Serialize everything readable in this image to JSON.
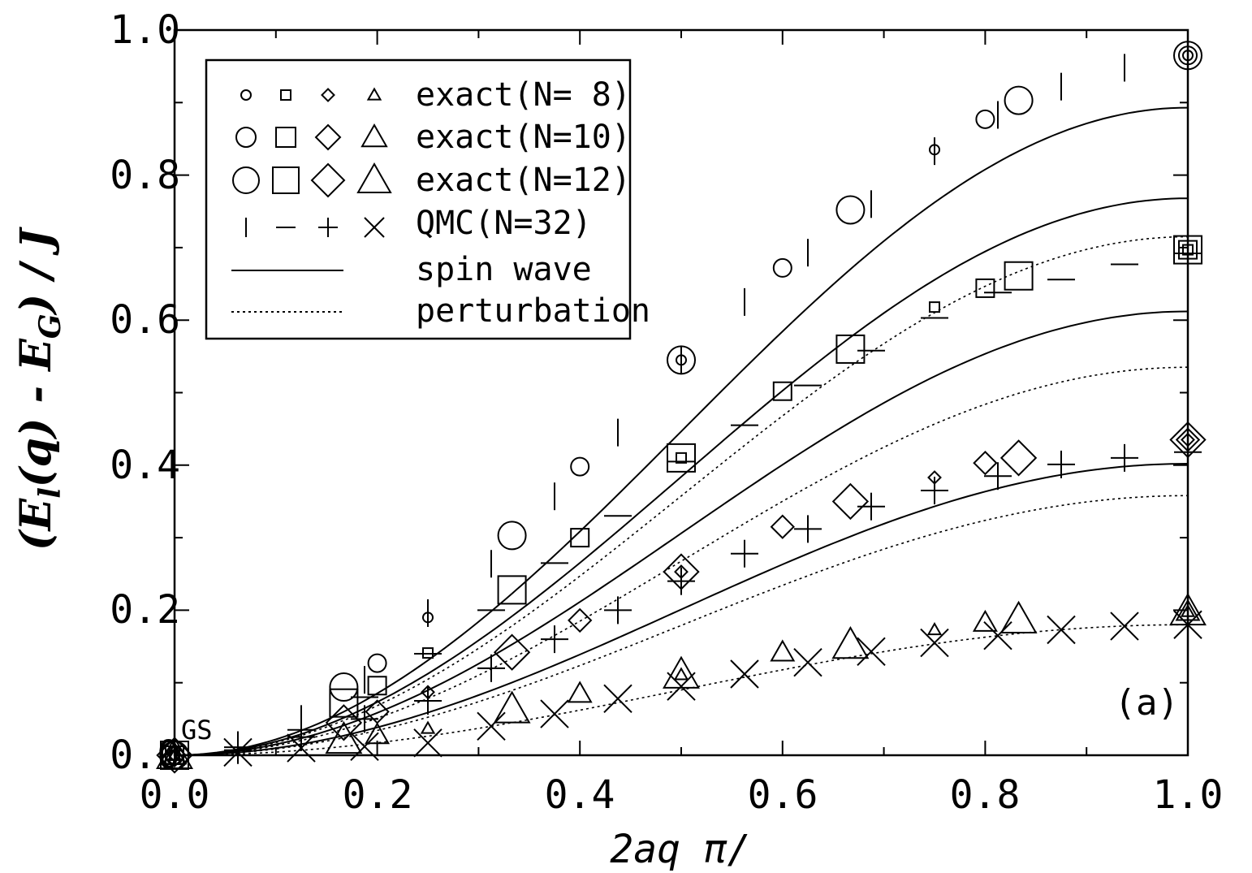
{
  "chart_data": {
    "type": "scatter",
    "xlabel": "2aq π/",
    "ylabel": "(E_l(q) - E_G) / J",
    "ylabel_parts": {
      "open": "(E",
      "sub_l": "l",
      "mid": "(q) - E",
      "sub_G": "G",
      "close": ") / J"
    },
    "xlim": [
      0,
      1
    ],
    "ylim": [
      0,
      1
    ],
    "xticks": [
      "0.0",
      "0.2",
      "0.4",
      "0.6",
      "0.8",
      "1.0"
    ],
    "yticks": [
      "0.0",
      "0.2",
      "0.4",
      "0.6",
      "0.8",
      "1.0"
    ],
    "panel_label": "(a)",
    "annotation": "GS",
    "legend": {
      "placement": "top-left",
      "entries": [
        {
          "label": "exact(N= 8)",
          "markers": [
            "circle",
            "square",
            "diamond",
            "triangle"
          ],
          "size": "small"
        },
        {
          "label": "exact(N=10)",
          "markers": [
            "circle",
            "square",
            "diamond",
            "triangle"
          ],
          "size": "medium"
        },
        {
          "label": "exact(N=12)",
          "markers": [
            "circle",
            "square",
            "diamond",
            "triangle"
          ],
          "size": "large"
        },
        {
          "label": "QMC(N=32)",
          "markers": [
            "vbar",
            "hbar",
            "plus",
            "cross"
          ],
          "size": "medium"
        },
        {
          "label": "spin wave",
          "line": "solid"
        },
        {
          "label": "perturbation",
          "line": "dotted"
        }
      ]
    },
    "series": [
      {
        "name": "exact(N= 8)",
        "branch": 1,
        "marker": "circle",
        "size": "small",
        "points": [
          [
            0,
            0
          ],
          [
            0.25,
            0.19
          ],
          [
            0.5,
            0.545
          ],
          [
            0.75,
            0.835
          ],
          [
            1,
            0.965
          ]
        ]
      },
      {
        "name": "exact(N= 8)",
        "branch": 2,
        "marker": "square",
        "size": "small",
        "points": [
          [
            0,
            0
          ],
          [
            0.25,
            0.141
          ],
          [
            0.5,
            0.41
          ],
          [
            0.75,
            0.618
          ],
          [
            1,
            0.697
          ]
        ]
      },
      {
        "name": "exact(N= 8)",
        "branch": 3,
        "marker": "diamond",
        "size": "small",
        "points": [
          [
            0,
            0
          ],
          [
            0.25,
            0.087
          ],
          [
            0.5,
            0.253
          ],
          [
            0.75,
            0.383
          ],
          [
            1,
            0.435
          ]
        ]
      },
      {
        "name": "exact(N= 8)",
        "branch": 4,
        "marker": "triangle",
        "size": "small",
        "points": [
          [
            0,
            0
          ],
          [
            0.25,
            0.037
          ],
          [
            0.5,
            0.111
          ],
          [
            0.75,
            0.173
          ],
          [
            1,
            0.198
          ]
        ]
      },
      {
        "name": "exact(N=10)",
        "branch": 1,
        "marker": "circle",
        "size": "medium",
        "points": [
          [
            0,
            0
          ],
          [
            0.2,
            0.127
          ],
          [
            0.4,
            0.398
          ],
          [
            0.6,
            0.672
          ],
          [
            0.8,
            0.877
          ],
          [
            1,
            0.965
          ]
        ]
      },
      {
        "name": "exact(N=10)",
        "branch": 2,
        "marker": "square",
        "size": "medium",
        "points": [
          [
            0,
            0
          ],
          [
            0.2,
            0.096
          ],
          [
            0.4,
            0.3
          ],
          [
            0.6,
            0.502
          ],
          [
            0.8,
            0.644
          ],
          [
            1,
            0.697
          ]
        ]
      },
      {
        "name": "exact(N=10)",
        "branch": 3,
        "marker": "diamond",
        "size": "medium",
        "points": [
          [
            0,
            0
          ],
          [
            0.2,
            0.06
          ],
          [
            0.4,
            0.186
          ],
          [
            0.6,
            0.315
          ],
          [
            0.8,
            0.403
          ],
          [
            1,
            0.435
          ]
        ]
      },
      {
        "name": "exact(N=10)",
        "branch": 4,
        "marker": "triangle",
        "size": "medium",
        "points": [
          [
            0,
            0
          ],
          [
            0.2,
            0.028
          ],
          [
            0.4,
            0.085
          ],
          [
            0.6,
            0.142
          ],
          [
            0.8,
            0.183
          ],
          [
            1,
            0.198
          ]
        ]
      },
      {
        "name": "exact(N=12)",
        "branch": 1,
        "marker": "circle",
        "size": "large",
        "points": [
          [
            0,
            0
          ],
          [
            0.167,
            0.094
          ],
          [
            0.333,
            0.303
          ],
          [
            0.5,
            0.545
          ],
          [
            0.667,
            0.752
          ],
          [
            0.833,
            0.903
          ],
          [
            1,
            0.965
          ]
        ]
      },
      {
        "name": "exact(N=12)",
        "branch": 2,
        "marker": "square",
        "size": "large",
        "points": [
          [
            0,
            0
          ],
          [
            0.167,
            0.072
          ],
          [
            0.333,
            0.228
          ],
          [
            0.5,
            0.41
          ],
          [
            0.667,
            0.56
          ],
          [
            0.833,
            0.661
          ],
          [
            1,
            0.697
          ]
        ]
      },
      {
        "name": "exact(N=12)",
        "branch": 3,
        "marker": "diamond",
        "size": "large",
        "points": [
          [
            0,
            0
          ],
          [
            0.167,
            0.045
          ],
          [
            0.333,
            0.142
          ],
          [
            0.5,
            0.253
          ],
          [
            0.667,
            0.35
          ],
          [
            0.833,
            0.41
          ],
          [
            1,
            0.435
          ]
        ]
      },
      {
        "name": "exact(N=12)",
        "branch": 4,
        "marker": "triangle",
        "size": "large",
        "points": [
          [
            0,
            0
          ],
          [
            0.167,
            0.021
          ],
          [
            0.333,
            0.063
          ],
          [
            0.5,
            0.111
          ],
          [
            0.667,
            0.152
          ],
          [
            0.833,
            0.187
          ],
          [
            1,
            0.198
          ]
        ]
      },
      {
        "name": "QMC(N=32)",
        "branch": 1,
        "marker": "vbar",
        "points": [
          [
            0.0625,
            0.014
          ],
          [
            0.125,
            0.05
          ],
          [
            0.1875,
            0.104
          ],
          [
            0.25,
            0.196
          ],
          [
            0.3125,
            0.264
          ],
          [
            0.375,
            0.357
          ],
          [
            0.4375,
            0.445
          ],
          [
            0.5,
            0.545
          ],
          [
            0.5625,
            0.625
          ],
          [
            0.625,
            0.693
          ],
          [
            0.6875,
            0.76
          ],
          [
            0.75,
            0.833
          ],
          [
            0.8125,
            0.883
          ],
          [
            0.875,
            0.922
          ],
          [
            0.9375,
            0.948
          ],
          [
            1,
            0.965
          ]
        ]
      },
      {
        "name": "QMC(N=32)",
        "branch": 2,
        "marker": "hbar",
        "points": [
          [
            0.0625,
            0.011
          ],
          [
            0.125,
            0.035
          ],
          [
            0.1875,
            0.08
          ],
          [
            0.25,
            0.14
          ],
          [
            0.3125,
            0.2
          ],
          [
            0.375,
            0.265
          ],
          [
            0.4375,
            0.33
          ],
          [
            0.5,
            0.405
          ],
          [
            0.5625,
            0.455
          ],
          [
            0.625,
            0.51
          ],
          [
            0.6875,
            0.558
          ],
          [
            0.75,
            0.603
          ],
          [
            0.8125,
            0.638
          ],
          [
            0.875,
            0.656
          ],
          [
            0.9375,
            0.677
          ],
          [
            1,
            0.692
          ]
        ]
      },
      {
        "name": "QMC(N=32)",
        "branch": 3,
        "marker": "plus",
        "points": [
          [
            0.0625,
            0.007
          ],
          [
            0.125,
            0.025
          ],
          [
            0.1875,
            0.05
          ],
          [
            0.25,
            0.075
          ],
          [
            0.3125,
            0.12
          ],
          [
            0.375,
            0.16
          ],
          [
            0.4375,
            0.2
          ],
          [
            0.5,
            0.24
          ],
          [
            0.5625,
            0.278
          ],
          [
            0.625,
            0.312
          ],
          [
            0.6875,
            0.343
          ],
          [
            0.75,
            0.365
          ],
          [
            0.8125,
            0.385
          ],
          [
            0.875,
            0.401
          ],
          [
            0.9375,
            0.41
          ],
          [
            1,
            0.418
          ]
        ]
      },
      {
        "name": "QMC(N=32)",
        "branch": 4,
        "marker": "cross",
        "points": [
          [
            0.0625,
            0.004
          ],
          [
            0.125,
            0.01
          ],
          [
            0.1875,
            0.012
          ],
          [
            0.25,
            0.017
          ],
          [
            0.3125,
            0.04
          ],
          [
            0.375,
            0.057
          ],
          [
            0.4375,
            0.078
          ],
          [
            0.5,
            0.095
          ],
          [
            0.5625,
            0.112
          ],
          [
            0.625,
            0.128
          ],
          [
            0.6875,
            0.143
          ],
          [
            0.75,
            0.155
          ],
          [
            0.8125,
            0.165
          ],
          [
            0.875,
            0.173
          ],
          [
            0.9375,
            0.178
          ],
          [
            1,
            0.18
          ]
        ]
      }
    ],
    "spin_wave_maxima": [
      0.893,
      0.768,
      0.612,
      0.402
    ],
    "perturbation_maxima": [
      0.715,
      0.535,
      0.358,
      0.18
    ]
  }
}
